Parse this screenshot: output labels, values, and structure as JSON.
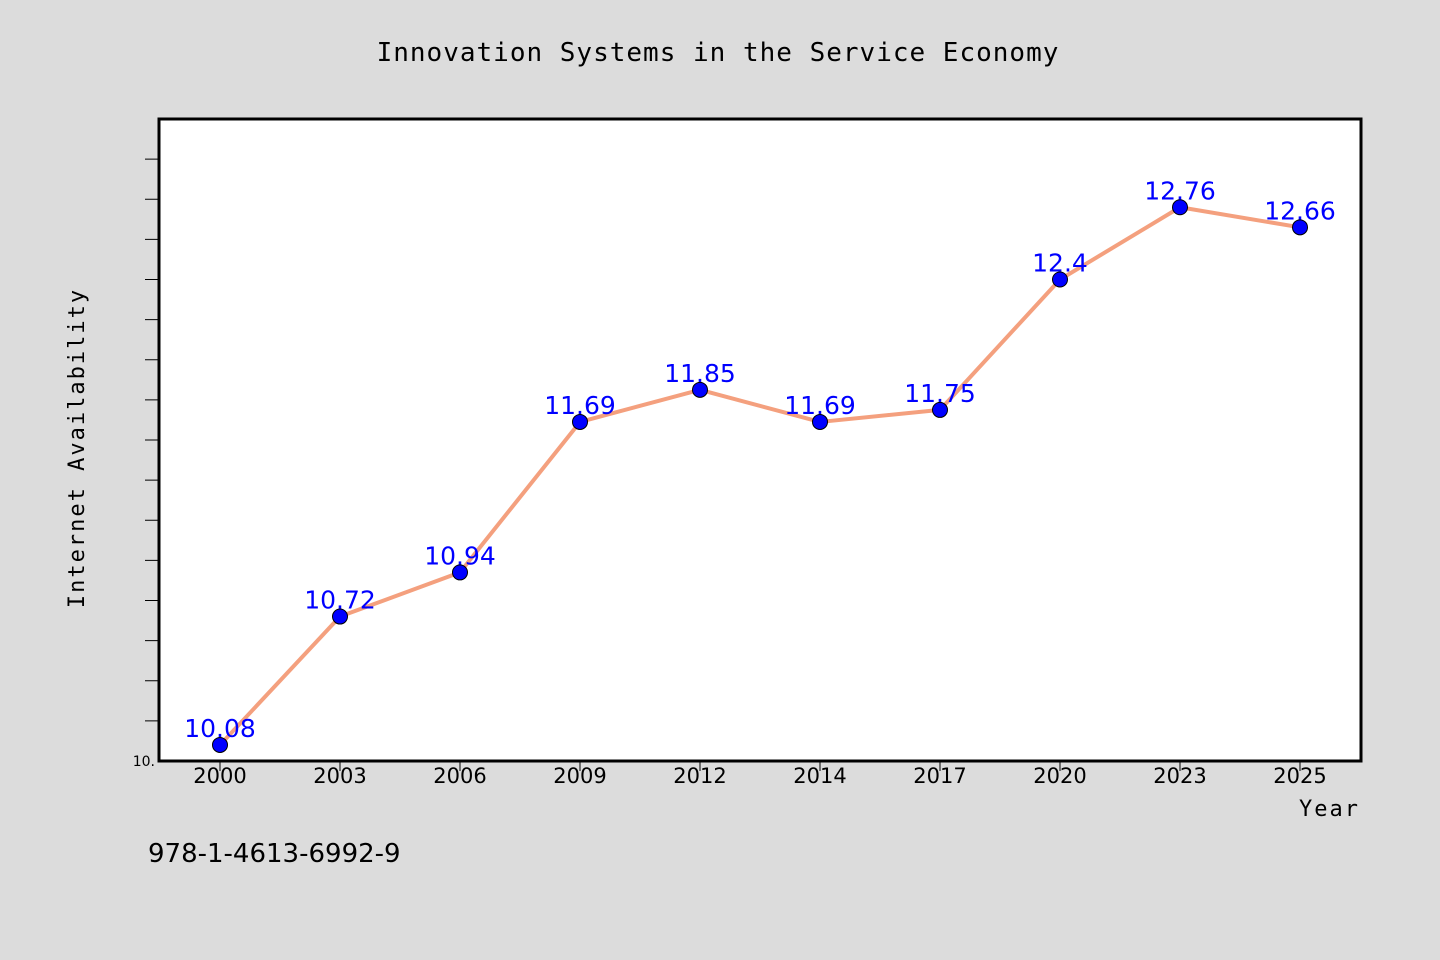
{
  "footer_text": "978-1-4613-6992-9",
  "colors": {
    "background": "#dcdcdc",
    "plot_background": "#ffffff",
    "line": "#f4a07e",
    "marker": "#0000ff",
    "data_label": "#0000ff"
  },
  "chart_data": {
    "type": "line",
    "title": "Innovation Systems in the Service Economy",
    "xlabel": "Year",
    "ylabel": "Internet Availability",
    "categories": [
      "2000",
      "2003",
      "2006",
      "2009",
      "2012",
      "2014",
      "2017",
      "2020",
      "2023",
      "2025"
    ],
    "series": [
      {
        "values": [
          10.08,
          10.72,
          10.94,
          11.69,
          11.85,
          11.69,
          11.75,
          12.4,
          12.76,
          12.66
        ],
        "labels": [
          "10.08",
          "10.72",
          "10.94",
          "11.69",
          "11.85",
          "11.69",
          "11.75",
          "12.4",
          "12.76",
          "12.66"
        ]
      }
    ],
    "ylim": [
      10.0,
      13.2
    ],
    "y_tick_labels": [
      "10."
    ],
    "grid": false,
    "legend": false
  }
}
